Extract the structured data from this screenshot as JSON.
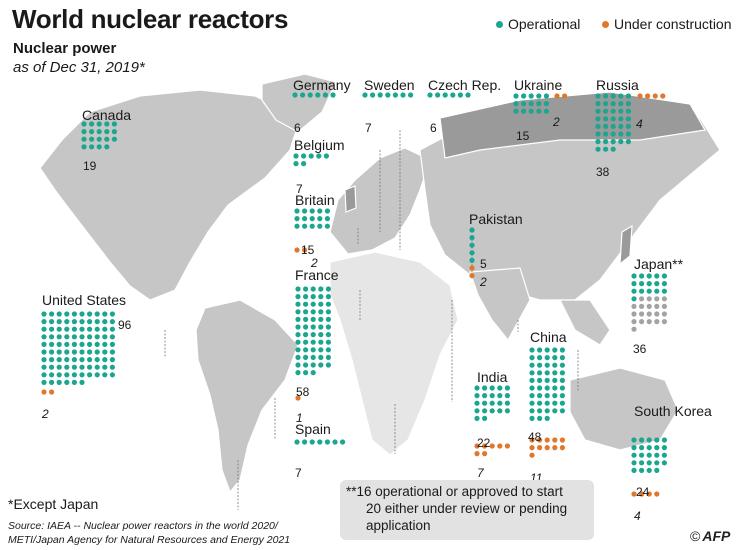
{
  "header": {
    "title": "World nuclear reactors",
    "subtitle": "Nuclear power",
    "as_of": "as of Dec 31, 2019*"
  },
  "legend": {
    "operational": "Operational",
    "under_construction": "Under construction"
  },
  "colors": {
    "operational": "#1aa68f",
    "under_construction": "#e0772d",
    "japan_review": "#a3a3a3",
    "land": "#c6c6c6",
    "land_highlight": "#9a9a9a",
    "land_light": "#e6e6e6",
    "note_box": "#e2e2e2",
    "leader": "#777777"
  },
  "chart_data": {
    "type": "table",
    "title": "World nuclear reactors",
    "subtitle": "Nuclear power as of Dec 31, 2019*",
    "units": "reactors",
    "series": [
      {
        "name": "Operational"
      },
      {
        "name": "Under construction"
      }
    ],
    "countries": [
      {
        "name": "Canada",
        "operational": 19,
        "under_construction": null
      },
      {
        "name": "Germany",
        "operational": 6,
        "under_construction": null
      },
      {
        "name": "Sweden",
        "operational": 7,
        "under_construction": null
      },
      {
        "name": "Czech Rep.",
        "operational": 6,
        "under_construction": null
      },
      {
        "name": "Ukraine",
        "operational": 15,
        "under_construction": 2
      },
      {
        "name": "Russia",
        "operational": 38,
        "under_construction": 4
      },
      {
        "name": "Belgium",
        "operational": 7,
        "under_construction": null
      },
      {
        "name": "Britain",
        "operational": 15,
        "under_construction": 2
      },
      {
        "name": "Pakistan",
        "operational": 5,
        "under_construction": 2
      },
      {
        "name": "Japan**",
        "operational": 36,
        "under_construction": null
      },
      {
        "name": "United States",
        "operational": 96,
        "under_construction": 2
      },
      {
        "name": "France",
        "operational": 58,
        "under_construction": 1
      },
      {
        "name": "China",
        "operational": 48,
        "under_construction": 11
      },
      {
        "name": "India",
        "operational": 22,
        "under_construction": 7
      },
      {
        "name": "Spain",
        "operational": 7,
        "under_construction": null
      },
      {
        "name": "South Korea",
        "operational": 24,
        "under_construction": 4
      }
    ],
    "japan_breakdown": {
      "operational_or_approved": 16,
      "under_review_or_pending": 20
    }
  },
  "footer": {
    "except_note": "*Except Japan",
    "source_line1": "Source: IAEA -- Nuclear power reactors in the world 2020/",
    "source_line2": "METI/Japan Agency for Natural Resources and Energy 2021",
    "note_line1": "**16 operational or approved to start",
    "note_line2": "20 either under review or pending",
    "note_line3": "application",
    "copyright": "©",
    "logo": "AFP"
  }
}
